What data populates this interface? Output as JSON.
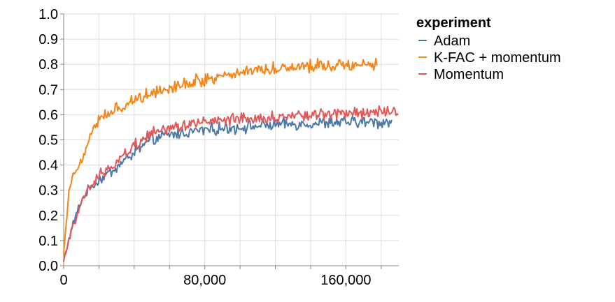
{
  "chart_data": {
    "type": "line",
    "title": "",
    "xlabel": "",
    "ylabel": "",
    "xlim": [
      0,
      190000
    ],
    "ylim": [
      0,
      1.0
    ],
    "xticks": [
      0,
      80000,
      160000
    ],
    "xtick_labels": [
      "0",
      "80,000",
      "160,000"
    ],
    "yticks": [
      0.0,
      0.1,
      0.2,
      0.3,
      0.4,
      0.5,
      0.6,
      0.7,
      0.8,
      0.9,
      1.0
    ],
    "ytick_labels": [
      "0.0",
      "0.1",
      "0.2",
      "0.3",
      "0.4",
      "0.5",
      "0.6",
      "0.7",
      "0.8",
      "0.9",
      "1.0"
    ],
    "grid": true,
    "legend": {
      "title": "experiment",
      "placement": "top-right outside"
    },
    "series": [
      {
        "name": "Adam",
        "color": "#4c78a8",
        "noise": 0.018,
        "x": [
          0,
          5000,
          10000,
          15000,
          20000,
          30000,
          40000,
          50000,
          60000,
          80000,
          100000,
          120000,
          140000,
          160000,
          180000,
          186000
        ],
        "y": [
          0.02,
          0.16,
          0.26,
          0.31,
          0.34,
          0.39,
          0.45,
          0.5,
          0.52,
          0.54,
          0.55,
          0.56,
          0.565,
          0.57,
          0.57,
          0.575
        ]
      },
      {
        "name": "K-FAC + momentum",
        "color": "#f58518",
        "noise": 0.02,
        "x": [
          0,
          3000,
          6000,
          10000,
          13000,
          16000,
          20000,
          30000,
          40000,
          50000,
          60000,
          80000,
          100000,
          120000,
          140000,
          160000,
          178000
        ],
        "y": [
          0.05,
          0.3,
          0.37,
          0.42,
          0.47,
          0.54,
          0.58,
          0.62,
          0.66,
          0.69,
          0.71,
          0.74,
          0.77,
          0.785,
          0.795,
          0.8,
          0.8
        ]
      },
      {
        "name": "Momentum",
        "color": "#e45756",
        "noise": 0.018,
        "x": [
          0,
          5000,
          10000,
          15000,
          20000,
          30000,
          40000,
          50000,
          60000,
          80000,
          100000,
          120000,
          140000,
          160000,
          180000,
          190000
        ],
        "y": [
          0.02,
          0.15,
          0.25,
          0.31,
          0.36,
          0.41,
          0.48,
          0.53,
          0.55,
          0.57,
          0.58,
          0.59,
          0.6,
          0.605,
          0.61,
          0.62
        ]
      }
    ]
  }
}
